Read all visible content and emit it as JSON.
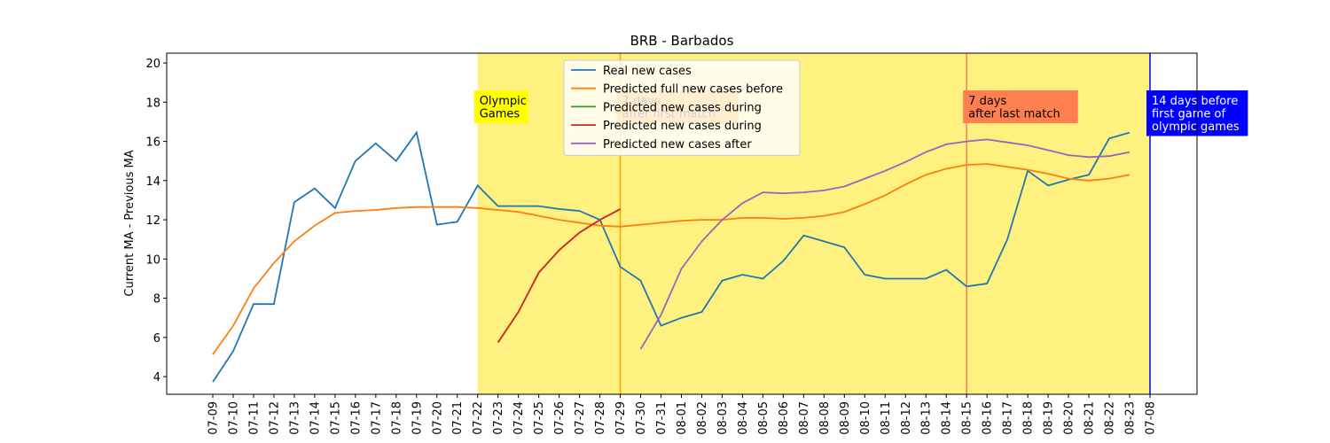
{
  "chart_data": {
    "type": "line",
    "title": "BRB - Barbados",
    "y_label": "Current MA - Previous MA",
    "categories": [
      "07-09",
      "07-10",
      "07-11",
      "07-12",
      "07-13",
      "07-14",
      "07-15",
      "07-16",
      "07-17",
      "07-18",
      "07-19",
      "07-20",
      "07-21",
      "07-22",
      "07-23",
      "07-24",
      "07-25",
      "07-26",
      "07-27",
      "07-28",
      "07-29",
      "07-30",
      "07-31",
      "08-01",
      "08-02",
      "08-03",
      "08-04",
      "08-05",
      "08-06",
      "08-07",
      "08-08",
      "08-09",
      "08-10",
      "08-11",
      "08-12",
      "08-13",
      "08-14",
      "08-15",
      "08-16",
      "08-17",
      "08-18",
      "08-19",
      "08-20",
      "08-21",
      "08-22",
      "08-23",
      "07-08"
    ],
    "ylim": [
      3.1,
      20.5
    ],
    "yticks": [
      4,
      6,
      8,
      10,
      12,
      14,
      16,
      18,
      20
    ],
    "series": [
      {
        "name": "Real new cases",
        "color": "#1f77b4",
        "values": [
          3.73,
          5.3,
          7.7,
          7.7,
          12.9,
          13.6,
          12.6,
          15.0,
          15.9,
          15.0,
          16.45,
          11.75,
          11.9,
          13.75,
          12.7,
          12.7,
          12.7,
          12.55,
          12.45,
          12.0,
          9.6,
          8.9,
          6.6,
          7.0,
          7.3,
          8.9,
          9.2,
          9.0,
          9.9,
          11.2,
          10.9,
          10.6,
          9.2,
          9.0,
          9.0,
          9.0,
          9.45,
          8.6,
          8.75,
          11.0,
          14.5,
          13.75,
          14.05,
          14.3,
          16.15,
          16.45,
          null
        ]
      },
      {
        "name": "Predicted full new cases before",
        "color": "#ff7f0e",
        "values": [
          5.13,
          6.6,
          8.5,
          9.8,
          10.9,
          11.7,
          12.35,
          12.45,
          12.5,
          12.6,
          12.65,
          12.65,
          12.65,
          12.6,
          12.5,
          12.4,
          12.2,
          12.0,
          11.85,
          11.7,
          11.65,
          11.75,
          11.85,
          11.95,
          12.0,
          12.0,
          12.1,
          12.1,
          12.05,
          12.1,
          12.2,
          12.4,
          12.8,
          13.25,
          13.8,
          14.3,
          14.6,
          14.8,
          14.85,
          14.7,
          14.55,
          14.35,
          14.1,
          14.0,
          14.1,
          14.3,
          null
        ]
      },
      {
        "name": "Predicted new cases during",
        "color": "#2ca02c",
        "values": [
          null,
          null,
          null,
          null,
          null,
          null,
          null,
          null,
          null,
          null,
          null,
          null,
          null,
          null,
          5.75,
          7.3,
          9.3,
          10.45,
          11.35,
          12.0,
          12.55,
          null,
          null,
          null,
          null,
          null,
          null,
          null,
          null,
          null,
          null,
          null,
          null,
          null,
          null,
          null,
          null,
          null,
          null,
          null,
          null,
          null,
          null,
          null,
          null,
          null,
          null
        ]
      },
      {
        "name": "Predicted new cases during",
        "color": "#d62728",
        "values": [
          null,
          null,
          null,
          null,
          null,
          null,
          null,
          null,
          null,
          null,
          null,
          null,
          null,
          null,
          5.75,
          7.3,
          9.3,
          10.45,
          11.35,
          12.0,
          12.55,
          null,
          null,
          null,
          null,
          null,
          null,
          null,
          null,
          null,
          null,
          null,
          null,
          null,
          null,
          null,
          null,
          null,
          null,
          null,
          null,
          null,
          null,
          null,
          null,
          null,
          null
        ]
      },
      {
        "name": "Predicted new cases after",
        "color": "#9467bd",
        "values": [
          null,
          null,
          null,
          null,
          null,
          null,
          null,
          null,
          null,
          null,
          null,
          null,
          null,
          null,
          null,
          null,
          null,
          null,
          null,
          null,
          null,
          5.4,
          7.15,
          9.5,
          10.9,
          12.0,
          12.85,
          13.4,
          13.35,
          13.4,
          13.5,
          13.7,
          14.1,
          14.5,
          14.95,
          15.45,
          15.85,
          16.0,
          16.1,
          15.95,
          15.8,
          15.55,
          15.3,
          15.2,
          15.25,
          15.45,
          null
        ]
      }
    ],
    "span": {
      "from": "07-22",
      "to": "07-08",
      "color": "#fef17f"
    },
    "vlines": [
      {
        "at": "07-29",
        "color": "#ffa500"
      },
      {
        "at": "08-15",
        "color": "#ff7f50"
      },
      {
        "at": "07-08",
        "color": "#0000ff"
      }
    ],
    "annotations": [
      {
        "at": "07-22",
        "lines": [
          "Olympic",
          "Games"
        ],
        "box": "#ffff00",
        "text_color": "#000000"
      },
      {
        "at": "07-29",
        "lines": [
          "7 days",
          "after first match"
        ],
        "box": "#ffa500",
        "text_color": "#000000"
      },
      {
        "at": "08-15",
        "lines": [
          "7 days",
          "after last match"
        ],
        "box": "#ff7f50",
        "text_color": "#000000"
      },
      {
        "at": "07-08",
        "lines": [
          "14 days before",
          "first game of",
          "olympic games"
        ],
        "box": "#0000ff",
        "text_color": "#ffffff"
      }
    ]
  }
}
